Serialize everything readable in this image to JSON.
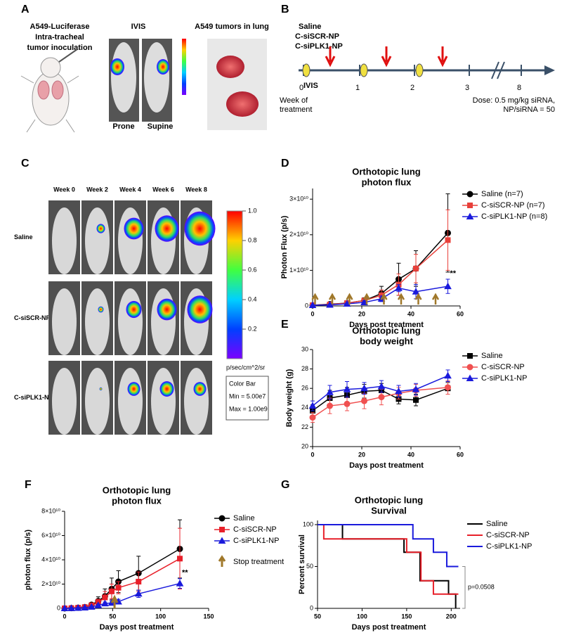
{
  "panels": {
    "A": {
      "label": "A",
      "inoculation": [
        "A549-Luciferase",
        "Intra-tracheal",
        "tumor inoculation"
      ],
      "ivis": "IVIS",
      "tumors": "A549 tumors in lung",
      "prone": "Prone",
      "supine": "Supine"
    },
    "B": {
      "label": "B",
      "treatments": [
        "Saline",
        "C-siSCR-NP",
        "C-siPLK1-NP"
      ],
      "weeks": [
        0,
        1,
        2,
        3,
        8
      ],
      "ivis": "IVIS",
      "week_label": [
        "Week of",
        "treatment"
      ],
      "dose": [
        "Dose: 0.5 mg/kg siRNA,",
        "NP/siRNA = 50"
      ]
    },
    "C": {
      "label": "C",
      "weeks": [
        "Week 0",
        "Week 2",
        "Week 4",
        "Week 6",
        "Week 8"
      ],
      "groups": [
        "Saline",
        "C-siSCR-NP",
        "C-siPLK1-NP"
      ],
      "colorbar_ticks": [
        {
          "value": 1,
          "label": "1.0"
        },
        0.8,
        0.6,
        0.4,
        0.2
      ],
      "unit": "p/sec/cm^2/sr",
      "colorbar_box": [
        "Color Bar",
        "Min = 5.00e7",
        "Max = 1.00e9"
      ]
    }
  },
  "chart_data": [
    {
      "type": "line",
      "panel": "D",
      "title": [
        "Orthotopic lung",
        "photon flux"
      ],
      "x_label": "Days post treatment",
      "y_label": "Photon Flux (p/s)",
      "x": [
        0,
        7,
        14,
        21,
        28,
        35,
        42,
        55
      ],
      "xlim": [
        0,
        60
      ],
      "xticks": [
        0,
        20,
        40,
        60
      ],
      "ylim": [
        0,
        33000000000.0
      ],
      "yticks": [
        0,
        {
          "value": 10000000000.0,
          "label": "1×10¹⁰"
        },
        {
          "value": 20000000000.0,
          "label": "2×10¹⁰"
        },
        {
          "value": 30000000000.0,
          "label": "3×10¹⁰"
        }
      ],
      "series": [
        {
          "name": "Saline (n=7)",
          "color": "#000000",
          "marker": "circle",
          "values": [
            200000000.0,
            500000000.0,
            800000000.0,
            1500000000.0,
            3500000000.0,
            7500000000.0,
            10500000000.0,
            20500000000.0
          ],
          "errors": [
            100000000.0,
            200000000.0,
            300000000.0,
            800000000.0,
            2000000000.0,
            4500000000.0,
            5000000000.0,
            11000000000.0
          ]
        },
        {
          "name": "C-siSCR-NP (n=7)",
          "color": "#e8403a",
          "marker": "square",
          "values": [
            200000000.0,
            400000000.0,
            800000000.0,
            1500000000.0,
            3000000000.0,
            6000000000.0,
            10500000000.0,
            18500000000.0
          ],
          "errors": [
            100000000.0,
            200000000.0,
            300000000.0,
            600000000.0,
            1500000000.0,
            3000000000.0,
            4000000000.0,
            8500000000.0
          ]
        },
        {
          "name": "C-siPLK1-NP (n=8)",
          "color": "#1a1adc",
          "marker": "triangle",
          "values": [
            200000000.0,
            300000000.0,
            600000000.0,
            1000000000.0,
            2000000000.0,
            5000000000.0,
            4000000000.0,
            5500000000.0
          ],
          "errors": [
            100000000.0,
            100000000.0,
            200000000.0,
            400000000.0,
            800000000.0,
            1000000000.0,
            2000000000.0,
            2000000000.0
          ]
        }
      ],
      "annotation": "**",
      "treatment_days": [
        1,
        8,
        15,
        22,
        29,
        36,
        43,
        50
      ]
    },
    {
      "type": "line",
      "panel": "E",
      "title": [
        "Orthotopic lung",
        "body weight"
      ],
      "x_label": "Days post treatment",
      "y_label": "Body weight (g)",
      "x": [
        0,
        7,
        14,
        21,
        28,
        35,
        42,
        55
      ],
      "xlim": [
        0,
        60
      ],
      "xticks": [
        0,
        20,
        40,
        60
      ],
      "ylim": [
        20,
        30
      ],
      "yticks": [
        20,
        22,
        24,
        26,
        28,
        30
      ],
      "series": [
        {
          "name": "Saline",
          "color": "#000000",
          "marker": "square",
          "values": [
            23.7,
            25.0,
            25.3,
            25.7,
            25.8,
            24.9,
            24.8,
            26.0
          ],
          "errors": [
            0.6,
            0.8,
            0.8,
            0.7,
            0.7,
            0.5,
            0.6,
            0.6
          ]
        },
        {
          "name": "C-siSCR-NP",
          "color": "#f05050",
          "marker": "circle",
          "values": [
            23.0,
            24.2,
            24.4,
            24.7,
            25.1,
            25.5,
            25.8,
            26.1
          ],
          "errors": [
            0.5,
            0.8,
            0.7,
            0.8,
            0.8,
            0.6,
            0.6,
            0.7
          ]
        },
        {
          "name": "C-siPLK1-NP",
          "color": "#1a1adc",
          "marker": "triangle",
          "values": [
            24.2,
            25.6,
            25.9,
            26.0,
            26.2,
            25.7,
            25.9,
            27.3
          ],
          "errors": [
            0.5,
            0.7,
            0.8,
            0.6,
            0.6,
            0.6,
            0.6,
            0.6
          ]
        }
      ]
    },
    {
      "type": "line",
      "panel": "F",
      "title": [
        "Orthotopic lung",
        "photon flux"
      ],
      "x_label": "Days post treatment",
      "y_label": "photon flux (p/s)",
      "x": [
        0,
        7,
        14,
        21,
        28,
        35,
        42,
        49,
        56,
        77,
        120
      ],
      "xlim": [
        0,
        150
      ],
      "xticks": [
        0,
        50,
        100,
        150
      ],
      "ylim": [
        0,
        80000000000.0
      ],
      "yticks": [
        0,
        {
          "value": 20000000000.0,
          "label": "2×10¹⁰"
        },
        {
          "value": 40000000000.0,
          "label": "4×10¹⁰"
        },
        {
          "value": 60000000000.0,
          "label": "6×10¹⁰"
        },
        {
          "value": 80000000000.0,
          "label": "8×10¹⁰"
        }
      ],
      "series": [
        {
          "name": "Saline",
          "color": "#000000",
          "marker": "circle",
          "values": [
            0,
            200000000.0,
            500000000.0,
            1000000000.0,
            3000000000.0,
            6000000000.0,
            10000000000.0,
            16000000000.0,
            22000000000.0,
            29000000000.0,
            49000000000.0
          ],
          "errors": [
            0,
            100000000.0,
            200000000.0,
            500000000.0,
            1500000000.0,
            3500000000.0,
            6000000000.0,
            9000000000.0,
            9000000000.0,
            14000000000.0,
            24000000000.0
          ]
        },
        {
          "name": "C-siSCR-NP",
          "color": "#e8202a",
          "marker": "square",
          "values": [
            0,
            200000000.0,
            500000000.0,
            1000000000.0,
            2500000000.0,
            5000000000.0,
            9000000000.0,
            14000000000.0,
            17000000000.0,
            22000000000.0,
            41000000000.0
          ],
          "errors": [
            0,
            100000000.0,
            200000000.0,
            400000000.0,
            1000000000.0,
            2500000000.0,
            5000000000.0,
            6000000000.0,
            5000000000.0,
            8000000000.0,
            25000000000.0
          ]
        },
        {
          "name": "C-siPLK1-NP",
          "color": "#1a1adc",
          "marker": "triangle",
          "values": [
            0,
            100000000.0,
            300000000.0,
            600000000.0,
            1200000000.0,
            2500000000.0,
            4000000000.0,
            4500000000.0,
            5500000000.0,
            12000000000.0,
            20500000000.0
          ],
          "errors": [
            0,
            100000000.0,
            100000000.0,
            200000000.0,
            500000000.0,
            800000000.0,
            1200000000.0,
            1500000000.0,
            2000000000.0,
            3000000000.0,
            4000000000.0
          ]
        }
      ],
      "annotation": "**",
      "stop_label": "Stop treatment",
      "stop_treatment_day": 52
    },
    {
      "type": "step",
      "panel": "G",
      "title": [
        "Orthotopic lung",
        "Survival"
      ],
      "x_label": "Days post treatment",
      "y_label": "Percent survival",
      "xlim": [
        50,
        210
      ],
      "xticks": [
        50,
        100,
        150,
        200
      ],
      "ylim": [
        0,
        105
      ],
      "yticks": [
        0,
        50,
        100
      ],
      "series": [
        {
          "name": "Saline",
          "color": "#000000",
          "x": [
            50,
            78,
            78,
            147,
            147,
            165,
            165,
            197,
            197,
            205,
            205
          ],
          "values": [
            100,
            100,
            83,
            83,
            67,
            67,
            33,
            33,
            17,
            17,
            0
          ]
        },
        {
          "name": "C-siSCR-NP",
          "color": "#e8202a",
          "x": [
            50,
            57,
            57,
            150,
            150,
            166,
            166,
            180,
            180,
            208
          ],
          "values": [
            100,
            100,
            83,
            83,
            67,
            67,
            33,
            33,
            17,
            17
          ]
        },
        {
          "name": "C-siPLK1-NP",
          "color": "#1a1adc",
          "x": [
            50,
            157,
            157,
            180,
            180,
            195,
            195,
            208
          ],
          "values": [
            100,
            100,
            83,
            83,
            67,
            67,
            50,
            50
          ]
        }
      ],
      "annotation": "p=0.0508"
    }
  ]
}
